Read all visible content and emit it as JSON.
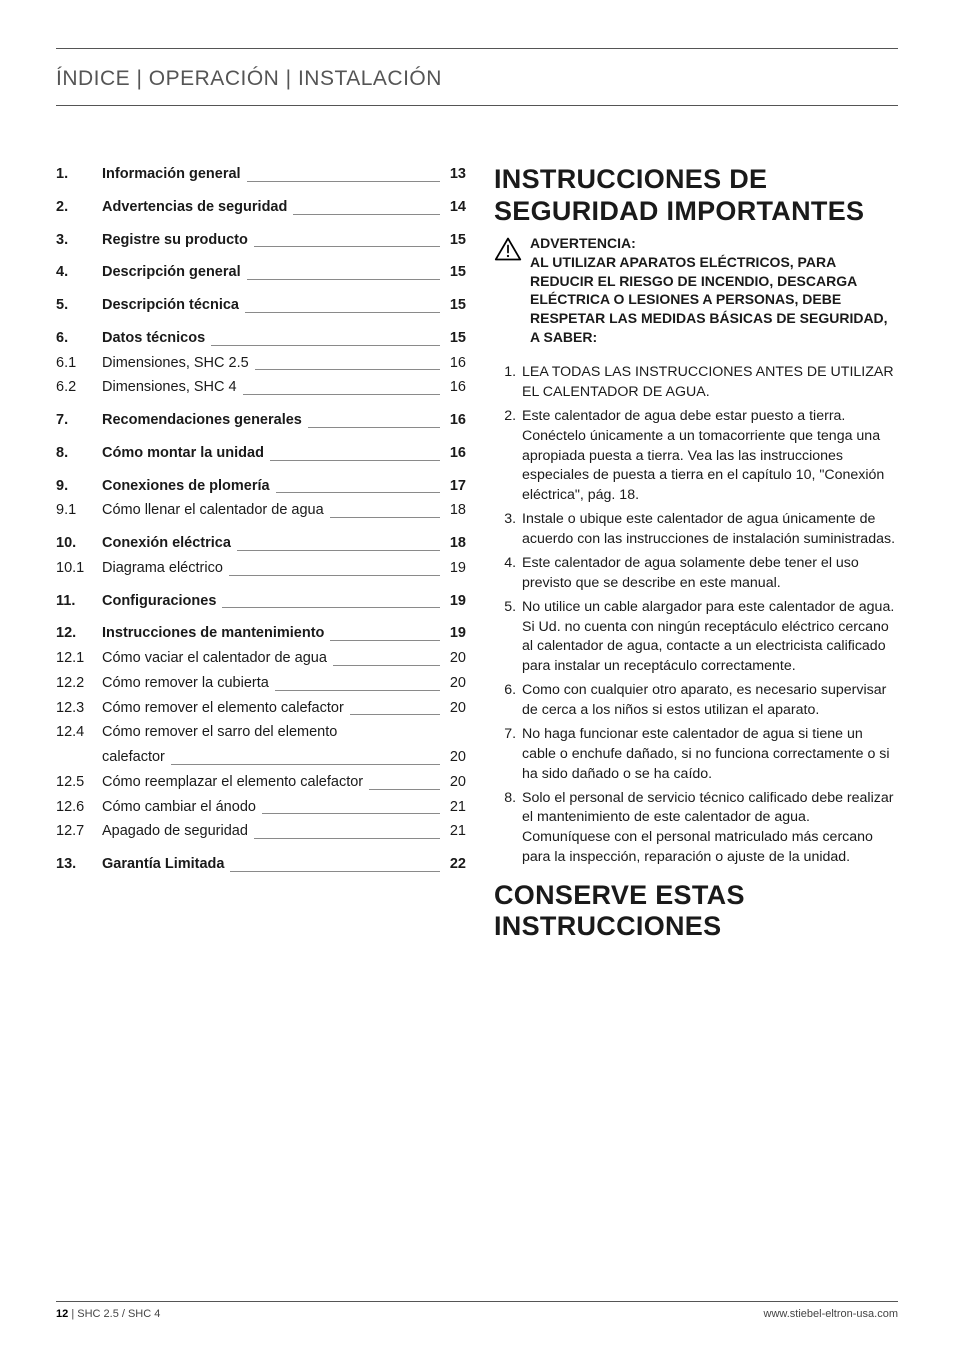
{
  "header": {
    "title": "ÍNDICE | OPERACIÓN | INSTALACIÓN"
  },
  "toc": [
    {
      "num": "1.",
      "label": "Información general",
      "page": "13",
      "bold": true,
      "gap": true
    },
    {
      "num": "2.",
      "label": "Advertencias de seguridad",
      "page": "14",
      "bold": true,
      "gap": true
    },
    {
      "num": "3.",
      "label": "Registre su producto",
      "page": "15",
      "bold": true,
      "gap": true
    },
    {
      "num": "4.",
      "label": "Descripción general",
      "page": "15",
      "bold": true,
      "gap": true
    },
    {
      "num": "5.",
      "label": "Descripción técnica",
      "page": "15",
      "bold": true,
      "gap": true
    },
    {
      "num": "6.",
      "label": "Datos técnicos",
      "page": "15",
      "bold": true,
      "gap": false
    },
    {
      "num": "6.1",
      "label": "Dimensiones, SHC 2.5",
      "page": "16",
      "bold": false,
      "gap": false
    },
    {
      "num": "6.2",
      "label": "Dimensiones, SHC 4",
      "page": "16",
      "bold": false,
      "gap": true
    },
    {
      "num": "7.",
      "label": "Recomendaciones generales",
      "page": "16",
      "bold": true,
      "gap": true
    },
    {
      "num": "8.",
      "label": "Cómo montar la unidad",
      "page": "16",
      "bold": true,
      "gap": true
    },
    {
      "num": "9.",
      "label": "Conexiones de plomería",
      "page": "17",
      "bold": true,
      "gap": false
    },
    {
      "num": "9.1",
      "label": "Cómo llenar el calentador de agua",
      "page": "18",
      "bold": false,
      "gap": true
    },
    {
      "num": "10.",
      "label": "Conexión eléctrica",
      "page": "18",
      "bold": true,
      "gap": false
    },
    {
      "num": "10.1",
      "label": "Diagrama eléctrico",
      "page": "19",
      "bold": false,
      "gap": true
    },
    {
      "num": "11.",
      "label": "Configuraciones",
      "page": "19",
      "bold": true,
      "gap": true
    },
    {
      "num": "12.",
      "label": "Instrucciones de mantenimiento",
      "page": "19",
      "bold": true,
      "gap": false
    },
    {
      "num": "12.1",
      "label": "Cómo vaciar el calentador de agua",
      "page": "20",
      "bold": false,
      "gap": false
    },
    {
      "num": "12.2",
      "label": "Cómo remover la cubierta",
      "page": "20",
      "bold": false,
      "gap": false
    },
    {
      "num": "12.3",
      "label": "Cómo remover el elemento calefactor",
      "page": "20",
      "bold": false,
      "gap": false
    },
    {
      "num": "12.4",
      "label": "Cómo remover el sarro del elemento calefactor",
      "page": "20",
      "bold": false,
      "gap": false,
      "wrap": true
    },
    {
      "num": "12.5",
      "label": "Cómo reemplazar el elemento calefactor",
      "page": "20",
      "bold": false,
      "gap": false
    },
    {
      "num": "12.6",
      "label": "Cómo cambiar el ánodo",
      "page": "21",
      "bold": false,
      "gap": false
    },
    {
      "num": "12.7",
      "label": "Apagado de seguridad",
      "page": "21",
      "bold": false,
      "gap": true
    },
    {
      "num": "13.",
      "label": "Garantía Limitada",
      "page": "22",
      "bold": true,
      "gap": false
    }
  ],
  "right": {
    "h1": "INSTRUCCIONES DE SEGURIDAD IMPORTANTES",
    "warning_title": "ADVERTENCIA:",
    "warning_body": "AL UTILIZAR APARATOS ELÉCTRICOS, PARA REDUCIR EL RIESGO DE INCENDIO, DESCARGA ELÉCTRICA O LESIONES A PERSONAS, DEBE RESPETAR LAS MEDIDAS BÁSICAS DE SEGURIDAD, A SABER:",
    "items": [
      "LEA TODAS LAS INSTRUCCIONES ANTES DE UTILIZAR EL CALENTADOR DE AGUA.",
      "Este calentador de agua debe estar puesto a tierra. Conéctelo únicamente a un tomacorriente que tenga una apropiada puesta a tierra. Vea las las instrucciones especiales de puesta a tierra en el capítulo 10, \"Conexión eléctrica\", pág. 18.",
      "Instale o ubique este calentador de agua únicamente de acuerdo con las instrucciones de instalación suministradas.",
      "Este calentador de agua solamente debe tener el uso previsto que se describe en este manual.",
      "No utilice un cable alargador para este calentador de agua. Si Ud. no cuenta con ningún receptáculo eléctrico cercano al calentador de agua, contacte a un electricista calificado para instalar un receptáculo correctamente.",
      "Como con cualquier otro aparato, es necesario supervisar de cerca a los niños si estos utilizan el aparato.",
      "No haga funcionar este calentador de agua si tiene un cable o enchufe dañado, si no funciona correctamente o si ha sido dañado o se ha caído.",
      "Solo el personal de servicio técnico calificado debe realizar el mantenimiento de este calentador de agua. Comuníquese con el personal matriculado más cercano para la inspección, reparación o ajuste de la unidad."
    ],
    "h2": "CONSERVE ESTAS INSTRUCCIONES"
  },
  "footer": {
    "page_num": "12",
    "product": "SHC 2.5 / SHC 4",
    "url": "www.stiebel-eltron-usa.com"
  }
}
